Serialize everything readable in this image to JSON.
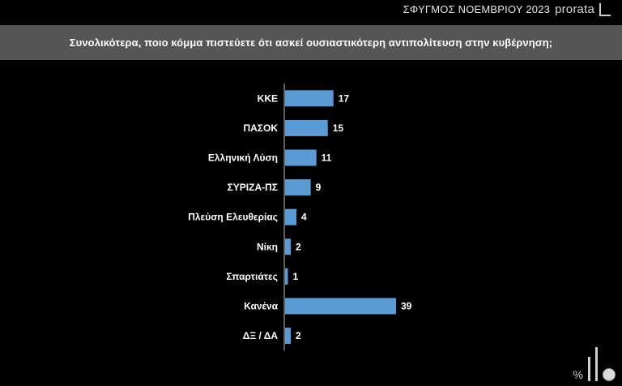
{
  "brand": {
    "survey_label": "ΣΦΥΓΜΟΣ ΝΟΕΜΒΡΙΟΥ 2023",
    "logo_text": "prorata"
  },
  "question": "Συνολικότερα, ποιο κόμμα πιστεύετε ότι ασκεί ουσιαστικότερη αντιπολίτευση στην κυβέρνηση;",
  "footer": {
    "percent_symbol": "%"
  },
  "colors": {
    "bar": "#5b9bd5",
    "background": "#000000",
    "header": "#555657",
    "text": "#ffffff"
  },
  "chart_data": {
    "type": "bar",
    "orientation": "horizontal",
    "categories": [
      "ΚΚΕ",
      "ΠΑΣΟΚ",
      "Ελληνική Λύση",
      "ΣΥΡΙΖΑ-ΠΣ",
      "Πλεύση Ελευθερίας",
      "Νίκη",
      "Σπαρτιάτες",
      "Κανένα",
      "ΔΞ / ΔΑ"
    ],
    "values": [
      17,
      15,
      11,
      9,
      4,
      2,
      1,
      39,
      2
    ],
    "data_labels": [
      "17",
      "15",
      "11",
      "9",
      "4",
      "2",
      "1",
      "39",
      "2"
    ],
    "xlim": [
      0,
      39
    ],
    "grid": false,
    "legend": "none"
  }
}
